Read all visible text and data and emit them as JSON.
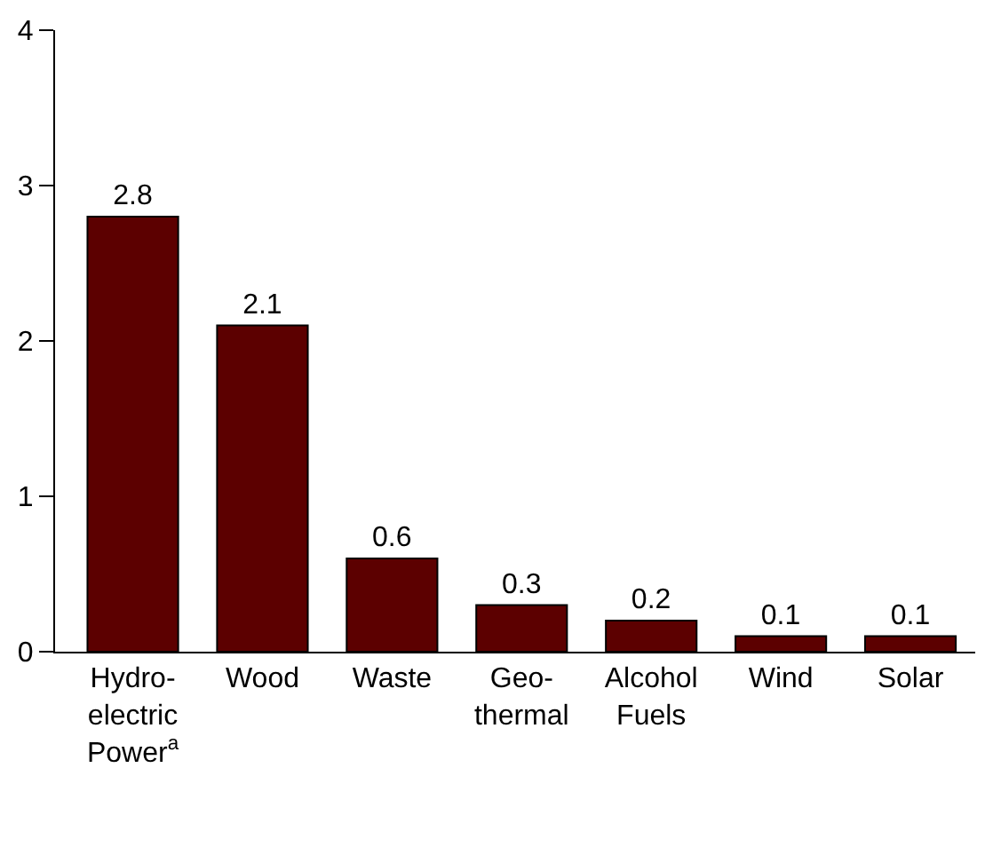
{
  "chart_data": {
    "type": "bar",
    "categories": [
      "Hydro-\nelectric\nPower$^{a}$",
      "Wood",
      "Waste",
      "Geo-\nthermal",
      "Alcohol\nFuels",
      "Wind",
      "Solar"
    ],
    "values": [
      2.8,
      2.1,
      0.6,
      0.3,
      0.2,
      0.1,
      0.1
    ],
    "color": "#5c0000",
    "ylim": [
      0,
      4
    ],
    "yticks": [
      0,
      1,
      2,
      3,
      4
    ],
    "grid": false,
    "data_labels": true
  }
}
